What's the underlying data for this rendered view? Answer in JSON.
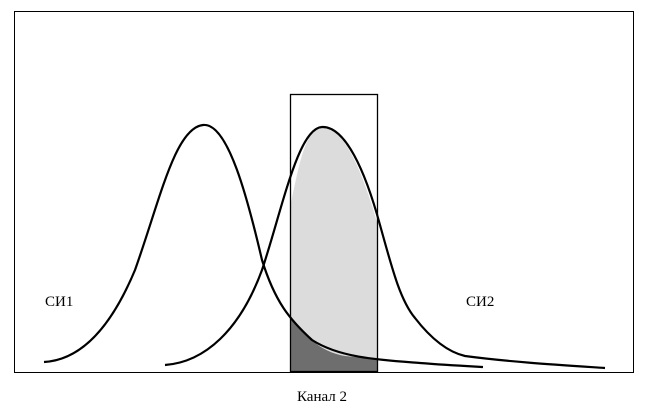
{
  "diagram": {
    "labels": {
      "source_1": "СИ1",
      "source_2": "СИ2",
      "channel": "Канал 2"
    },
    "colors": {
      "curve": "#000000",
      "channel_fill": "#dcdcdc",
      "overlap_fill": "#6e6e6e",
      "frame": "#000000",
      "background": "#ffffff"
    }
  }
}
